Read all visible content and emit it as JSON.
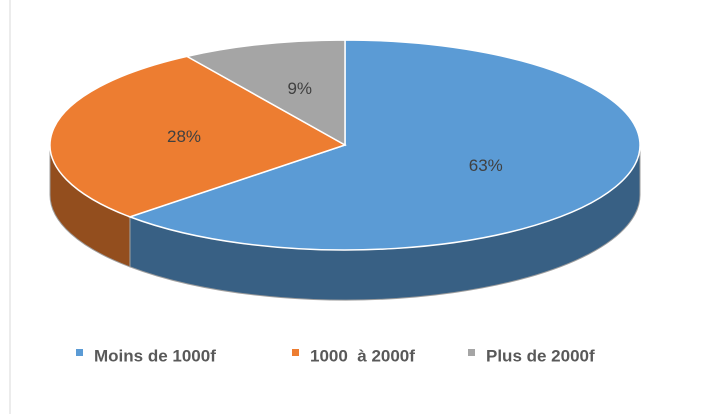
{
  "chart_data": {
    "type": "pie3d",
    "categories": [
      "Moins de 1000f",
      "1000  à 2000f",
      "Plus de 2000f"
    ],
    "values": [
      63,
      28,
      9
    ],
    "value_labels": [
      "63%",
      "28%",
      "9%"
    ],
    "colors": [
      "#5b9bd5",
      "#ed7d31",
      "#a5a5a5"
    ],
    "legend": "bottom"
  }
}
